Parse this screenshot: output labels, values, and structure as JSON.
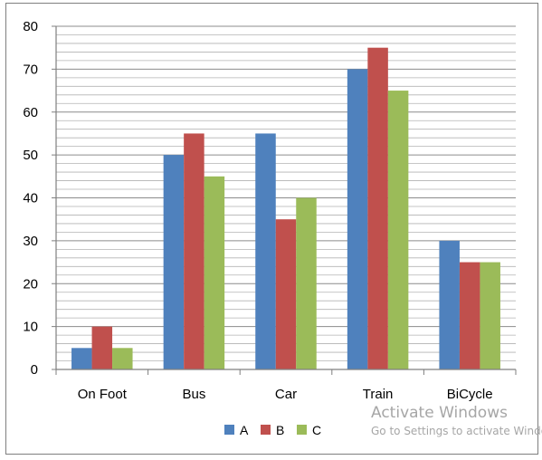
{
  "chart_data": {
    "type": "bar",
    "categories": [
      "On Foot",
      "Bus",
      "Car",
      "Train",
      "BiCycle"
    ],
    "series": [
      {
        "name": "A",
        "color": "#4f81bd",
        "values": [
          5,
          50,
          55,
          70,
          30
        ]
      },
      {
        "name": "B",
        "color": "#c0504d",
        "values": [
          10,
          55,
          35,
          75,
          25
        ]
      },
      {
        "name": "C",
        "color": "#9bbb59",
        "values": [
          5,
          45,
          40,
          65,
          25
        ]
      }
    ],
    "title": "",
    "xlabel": "",
    "ylabel": "",
    "ylim": [
      0,
      80
    ],
    "yticks": [
      0,
      10,
      20,
      30,
      40,
      50,
      60,
      70,
      80
    ],
    "grid": true,
    "legend": "bottom"
  },
  "watermark": {
    "title": "Activate Windows",
    "subtitle": "Go to Settings to activate Windows."
  }
}
